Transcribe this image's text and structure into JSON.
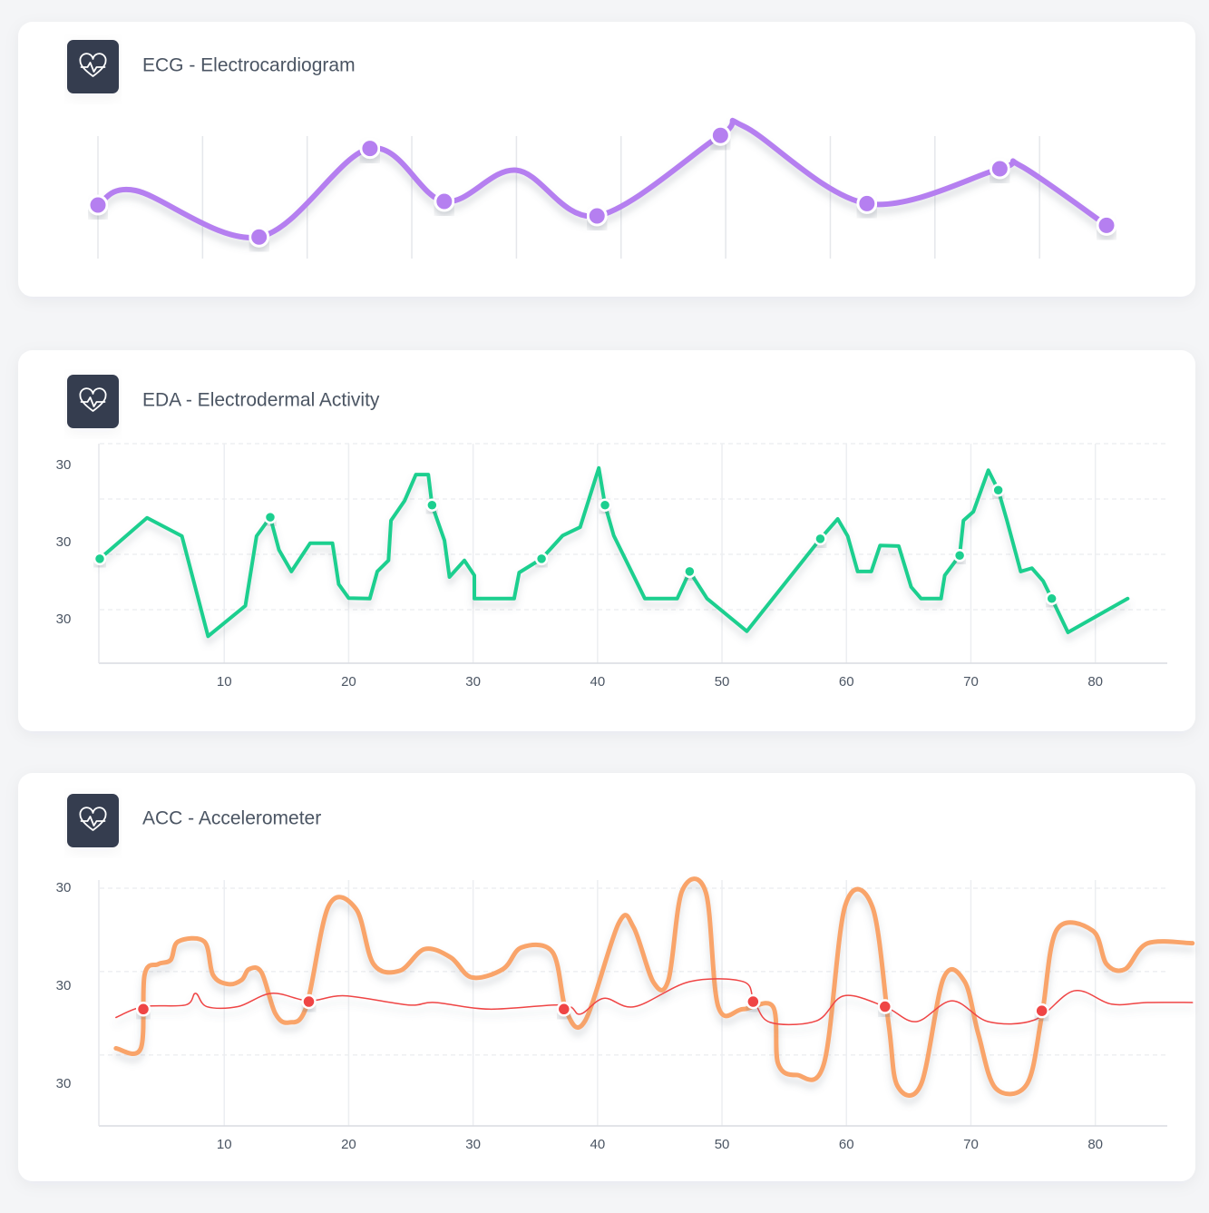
{
  "chart_data": [
    {
      "type": "line",
      "title": "ECG - Electrocardiogram",
      "xlim": [
        0,
        9.64
      ],
      "ylim": [
        0,
        100
      ],
      "xgrid": [
        0,
        1,
        2,
        3,
        4,
        5,
        6,
        7,
        8,
        9
      ],
      "series": [
        {
          "color": "#b57ff0",
          "smooth": true,
          "markers": false,
          "line": true,
          "width": 6,
          "x": [
            0,
            0.36,
            1.54,
            2.6,
            3.31,
            4.0,
            4.77,
            5.95,
            6.18,
            7.35,
            8.62,
            8.82,
            9.64
          ],
          "values": [
            40,
            50,
            18,
            79,
            42.5,
            64,
            32.5,
            88,
            94,
            41,
            65,
            67,
            26
          ]
        },
        {
          "color": "#b57ff0",
          "markers": true,
          "line": false,
          "x": [
            0,
            1.54,
            2.6,
            3.31,
            4.77,
            5.95,
            7.35,
            8.62,
            9.64
          ],
          "values": [
            40,
            18,
            79,
            42.5,
            32.5,
            88,
            41,
            65,
            26
          ]
        }
      ]
    },
    {
      "type": "line",
      "title": "EDA - Electrodermal Activity",
      "xlim": [
        0,
        86
      ],
      "ylim": [
        0,
        4
      ],
      "xticks": [
        10,
        20,
        30,
        40,
        50,
        60,
        70,
        80
      ],
      "ygrid": [
        1,
        2,
        3,
        4
      ],
      "y_labels": [
        "30",
        "30",
        "30"
      ],
      "series": [
        {
          "color": "#1fcf8f",
          "smooth": false,
          "markers": false,
          "line": true,
          "width": 4,
          "x": [
            0,
            3.8,
            6.6,
            8.7,
            11.7,
            12.6,
            13.7,
            14.4,
            15.4,
            16.9,
            18.7,
            19.2,
            20.0,
            21.7,
            22.3,
            23.2,
            23.4,
            24.5,
            25.4,
            26.4,
            26.7,
            27.7,
            28.1,
            29.3,
            30.1,
            30.1,
            33.3,
            33.7,
            35.5,
            37.2,
            38.6,
            40.1,
            40.6,
            41.3,
            43.8,
            46.4,
            47.4,
            48.8,
            52.0,
            57.9,
            59.3,
            60.1,
            60.9,
            62.0,
            62.7,
            64.2,
            65.2,
            66.0,
            67.6,
            67.9,
            69.1,
            69.4,
            70.2,
            71.4,
            72.2,
            72.9,
            74.0,
            74.9,
            75.8,
            76.5,
            77.8,
            82.6
          ],
          "values": [
            1.92,
            2.66,
            2.33,
            0.52,
            1.07,
            2.33,
            2.67,
            2.08,
            1.69,
            2.2,
            2.2,
            1.46,
            1.21,
            1.2,
            1.69,
            1.89,
            2.61,
            2.97,
            3.44,
            3.44,
            2.89,
            2.25,
            1.59,
            1.89,
            1.62,
            1.2,
            1.2,
            1.67,
            1.92,
            2.34,
            2.49,
            3.56,
            2.89,
            2.34,
            1.2,
            1.2,
            1.69,
            1.2,
            0.61,
            2.28,
            2.64,
            2.33,
            1.69,
            1.69,
            2.16,
            2.15,
            1.41,
            1.2,
            1.2,
            1.62,
            1.98,
            2.61,
            2.77,
            3.52,
            3.16,
            2.61,
            1.69,
            1.75,
            1.52,
            1.2,
            0.59,
            1.2
          ]
        },
        {
          "color": "#1fcf8f",
          "markers": true,
          "line": false,
          "x": [
            0,
            13.7,
            26.7,
            35.5,
            40.6,
            47.4,
            57.9,
            69.1,
            72.2,
            76.5
          ],
          "values": [
            1.92,
            2.67,
            2.89,
            1.92,
            2.89,
            1.69,
            2.28,
            1.98,
            3.16,
            1.2
          ]
        }
      ]
    },
    {
      "type": "line",
      "title": "ACC - Accelerometer",
      "xlim": [
        0,
        86
      ],
      "ylim": [
        0.15,
        3
      ],
      "xticks": [
        10,
        20,
        30,
        40,
        50,
        60,
        70,
        80
      ],
      "ygrid": [
        1,
        2,
        3
      ],
      "y_labels": [
        "30",
        "30",
        "30"
      ],
      "series": [
        {
          "color": "#f9a46a",
          "smooth": true,
          "markers": false,
          "line": true,
          "width": 5,
          "x": [
            1.3,
            3.3,
            3.6,
            4.7,
            5.7,
            6.3,
            8.4,
            9.1,
            10.3,
            11.4,
            12.0,
            13.0,
            14.1,
            15.2,
            16.6,
            18.4,
            20.6,
            22.0,
            24.1,
            26.1,
            28.2,
            29.9,
            32.4,
            33.9,
            36.4,
            37.5,
            39.0,
            41.7,
            42.9,
            44.5,
            45.7,
            46.8,
            48.7,
            49.7,
            51.7,
            54.1,
            54.5,
            56.0,
            58.2,
            59.9,
            62.1,
            63.4,
            64.1,
            66.0,
            67.8,
            69.5,
            70.6,
            72.0,
            74.5,
            75.7,
            76.9,
            79.8,
            80.9,
            82.4,
            84.2,
            87.8
          ],
          "values": [
            1.08,
            1.08,
            1.96,
            2.09,
            2.14,
            2.36,
            2.36,
            1.96,
            1.85,
            1.9,
            2.03,
            1.99,
            1.5,
            1.39,
            1.58,
            2.79,
            2.75,
            2.09,
            2.01,
            2.27,
            2.17,
            1.93,
            2.03,
            2.29,
            2.23,
            1.52,
            1.41,
            2.58,
            2.53,
            1.87,
            1.9,
            2.97,
            2.95,
            1.58,
            1.55,
            1.58,
            0.9,
            0.76,
            0.9,
            2.79,
            2.77,
            1.36,
            0.63,
            0.65,
            1.92,
            1.88,
            1.25,
            0.6,
            0.65,
            1.47,
            2.5,
            2.49,
            2.09,
            2.03,
            2.34,
            2.34
          ]
        },
        {
          "color": "#ef4444",
          "smooth": true,
          "markers": false,
          "line": true,
          "width": 1.5,
          "x": [
            1.3,
            3.5,
            6.9,
            7.7,
            8.6,
            11.1,
            13.8,
            16.8,
            19.7,
            24.8,
            26.9,
            31.3,
            37.2,
            38.6,
            40.5,
            43.0,
            47.4,
            51.7,
            52.6,
            53.9,
            57.6,
            59.8,
            63.1,
            65.6,
            68.5,
            71.4,
            75.1,
            78.3,
            81.3,
            84.2,
            87.8
          ],
          "values": [
            1.45,
            1.58,
            1.6,
            1.74,
            1.58,
            1.58,
            1.74,
            1.65,
            1.71,
            1.6,
            1.63,
            1.55,
            1.6,
            1.49,
            1.68,
            1.58,
            1.88,
            1.88,
            1.64,
            1.39,
            1.41,
            1.71,
            1.58,
            1.4,
            1.65,
            1.4,
            1.42,
            1.77,
            1.61,
            1.63,
            1.63
          ]
        },
        {
          "color": "#ef4444",
          "markers": true,
          "line": false,
          "x": [
            3.5,
            16.8,
            37.3,
            52.5,
            63.1,
            75.7
          ],
          "values": [
            1.55,
            1.64,
            1.55,
            1.64,
            1.58,
            1.53
          ]
        }
      ]
    }
  ]
}
